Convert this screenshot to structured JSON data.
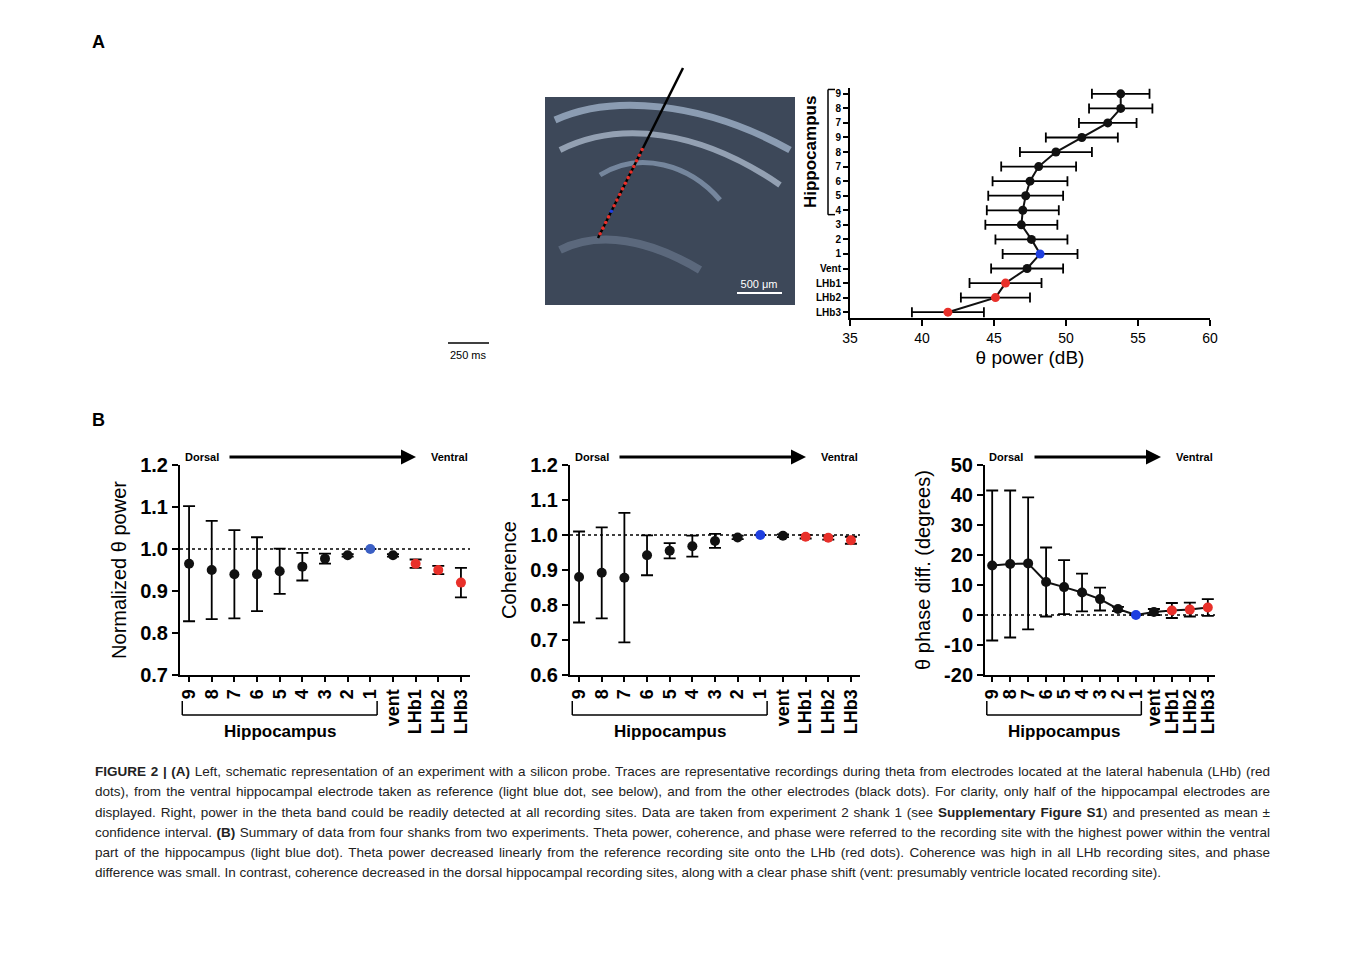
{
  "panel_labels": [
    "A",
    "B"
  ],
  "schematic": {
    "scale_bar_space": "500 μm",
    "scale_bar_time": "250 ms"
  },
  "chart_data": [
    {
      "type": "scatter",
      "orientation": "horizontal",
      "x_label": "θ power (dB)",
      "categories": [
        "9",
        "8",
        "7",
        "9",
        "8",
        "7",
        "6",
        "5",
        "4",
        "3",
        "2",
        "1",
        "Vent",
        "LHb1",
        "LHb2",
        "LHb3"
      ],
      "values": [
        53.8,
        53.8,
        52.9,
        51.1,
        49.3,
        48.1,
        47.5,
        47.2,
        47.0,
        46.9,
        47.6,
        48.2,
        47.3,
        45.8,
        45.1,
        41.8
      ],
      "errors": [
        2.0,
        2.2,
        2.0,
        2.5,
        2.5,
        2.6,
        2.6,
        2.6,
        2.5,
        2.5,
        2.5,
        2.6,
        2.5,
        2.5,
        2.4,
        2.5
      ],
      "colors": [
        "#111111",
        "#111111",
        "#111111",
        "#111111",
        "#111111",
        "#111111",
        "#111111",
        "#111111",
        "#111111",
        "#111111",
        "#111111",
        "#1f3fe0",
        "#111111",
        "#e8302a",
        "#e8302a",
        "#e8302a"
      ],
      "color": "#111111",
      "marker": "circle",
      "line_style": "solid",
      "grid": false,
      "xlim": [
        35,
        60
      ],
      "xticks": [
        35,
        40,
        45,
        50,
        55,
        60
      ],
      "group": {
        "label": "Hippocampus",
        "start": 0,
        "end": 8
      }
    },
    {
      "type": "scatter",
      "y_label": "Normalized θ power",
      "categories": [
        "9",
        "8",
        "7",
        "6",
        "5",
        "4",
        "3",
        "2",
        "1",
        "vent",
        "LHb1",
        "LHb2",
        "LHb3"
      ],
      "values": [
        0.965,
        0.95,
        0.94,
        0.94,
        0.947,
        0.958,
        0.977,
        0.985,
        1.0,
        0.985,
        0.965,
        0.95,
        0.92
      ],
      "errors": [
        0.137,
        0.117,
        0.105,
        0.088,
        0.054,
        0.033,
        0.012,
        0.003,
        0,
        0.003,
        0.01,
        0.01,
        0.035
      ],
      "colors": [
        "#111111",
        "#111111",
        "#111111",
        "#111111",
        "#111111",
        "#111111",
        "#111111",
        "#111111",
        "#3b5fc4",
        "#111111",
        "#e8302a",
        "#e8302a",
        "#e8302a"
      ],
      "color": "#111111",
      "marker": "circle",
      "line_style": "none",
      "grid": false,
      "ylim": [
        0.7,
        1.2
      ],
      "yticks": [
        0.7,
        0.8,
        0.9,
        {
          "value": 1,
          "label": "1.0"
        },
        1.1,
        1.2
      ],
      "baseline": 1,
      "direction": {
        "from": "Dorsal",
        "to": "Ventral"
      },
      "group": {
        "label": "Hippocampus",
        "start": 0,
        "end": 8
      }
    },
    {
      "type": "scatter",
      "y_label": "Coherence",
      "categories": [
        "9",
        "8",
        "7",
        "6",
        "5",
        "4",
        "3",
        "2",
        "1",
        "vent",
        "LHb1",
        "LHb2",
        "LHb3"
      ],
      "values": [
        0.88,
        0.892,
        0.878,
        0.942,
        0.955,
        0.968,
        0.983,
        0.993,
        1.0,
        0.998,
        0.995,
        0.992,
        0.985
      ],
      "errors": [
        0.13,
        0.13,
        0.185,
        0.057,
        0.022,
        0.03,
        0.02,
        0.005,
        0,
        0.004,
        0.005,
        0.005,
        0.01
      ],
      "colors": [
        "#111111",
        "#111111",
        "#111111",
        "#111111",
        "#111111",
        "#111111",
        "#111111",
        "#111111",
        "#1f3fe0",
        "#111111",
        "#e8302a",
        "#e8302a",
        "#e8302a"
      ],
      "color": "#111111",
      "marker": "circle",
      "line_style": "none",
      "grid": false,
      "ylim": [
        0.6,
        1.2
      ],
      "yticks": [
        0.6,
        0.7,
        0.8,
        0.9,
        {
          "value": 1,
          "label": "1.0"
        },
        1.1,
        1.2
      ],
      "baseline": 1,
      "direction": {
        "from": "Dorsal",
        "to": "Ventral"
      },
      "group": {
        "label": "Hippocampus",
        "start": 0,
        "end": 8
      }
    },
    {
      "type": "scatter",
      "y_label": "θ phase diff. (degrees)",
      "categories": [
        "9",
        "8",
        "7",
        "6",
        "5",
        "4",
        "3",
        "2",
        "1",
        "vent",
        "LHb1",
        "LHb2",
        "LHb3"
      ],
      "values": [
        16.5,
        17,
        17.2,
        11,
        9.3,
        7.5,
        5.3,
        2,
        0,
        1,
        1.5,
        1.8,
        2.5
      ],
      "errors": [
        25,
        24.5,
        22,
        11.5,
        9,
        6.3,
        3.8,
        0.7,
        0,
        1,
        2.5,
        2.3,
        2.8
      ],
      "colors": [
        "#111111",
        "#111111",
        "#111111",
        "#111111",
        "#111111",
        "#111111",
        "#111111",
        "#111111",
        "#1f3fe0",
        "#111111",
        "#e8302a",
        "#e8302a",
        "#e8302a"
      ],
      "color": "#111111",
      "marker": "circle",
      "line_style": "solid",
      "grid": false,
      "ylim": [
        -20,
        50
      ],
      "yticks": [
        -20,
        -10,
        0,
        10,
        20,
        30,
        40,
        50
      ],
      "baseline": 0,
      "direction": {
        "from": "Dorsal",
        "to": "Ventral"
      },
      "group": {
        "label": "Hippocampus",
        "start": 0,
        "end": 8
      }
    }
  ],
  "caption": [
    {
      "text": "FIGURE 2 | (A)",
      "bold": true
    },
    {
      "text": " Left, schematic representation of an experiment with a silicon probe. Traces are representative recordings during theta from electrodes located at the lateral habenula (LHb) (red dots), from the ventral hippocampal electrode taken as reference (light blue dot, see below), and from the other electrodes (black dots). For clarity, only half of the hippocampal electrodes are displayed. Right, power in the theta band could be readily detected at all recording sites. Data are taken from experiment 2 shank 1 (see ",
      "bold": false
    },
    {
      "text": "Supplementary Figure S1",
      "bold": true
    },
    {
      "text": ") and presented as mean ± confidence interval. ",
      "bold": false
    },
    {
      "text": "(B)",
      "bold": true
    },
    {
      "text": " Summary of data from four shanks from two experiments. Theta power, coherence, and phase were referred to the recording site with the highest power within the ventral part of the hippocampus (light blue dot). Theta power decreased linearly from the reference recording site onto the LHb (red dots). Coherence was high in all LHb recording sites, and phase difference was small. In contrast, coherence decreased in the dorsal hippocampal recording sites, along with a clear phase shift (vent: presumably ventricle located recording site).",
      "bold": false
    }
  ]
}
